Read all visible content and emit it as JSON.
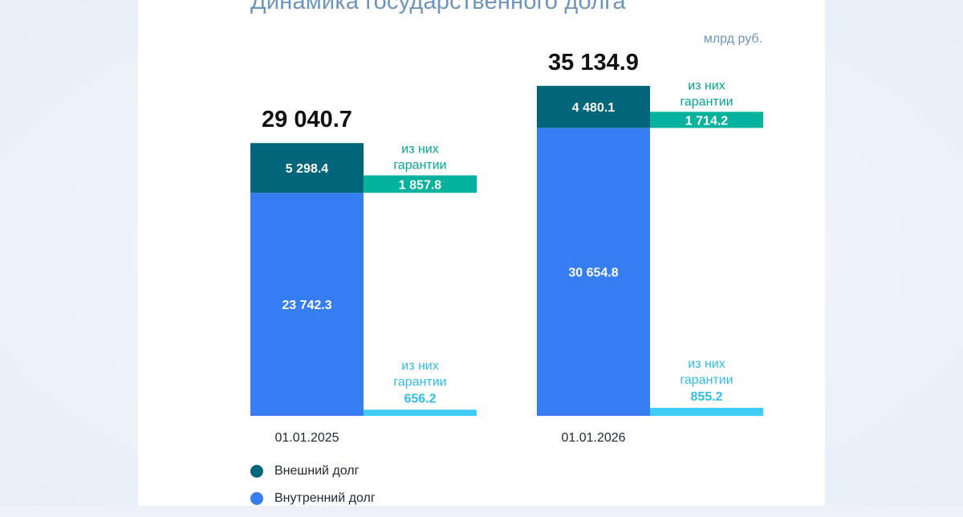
{
  "title": "Динамика государственного долга",
  "unit": "млрд руб.",
  "colors": {
    "external": "#02657a",
    "domestic": "#367df2",
    "external_guarantee": "#04b29d",
    "domestic_guarantee": "#3fccf8",
    "total_text": "#111111",
    "date_text": "#1f2933",
    "guarantee_label_ext": "#04a592",
    "guarantee_label_dom": "#30bde8"
  },
  "guarantee_label": [
    "из них",
    "гарантии"
  ],
  "legend": [
    {
      "label": "Внешний долг",
      "color": "#02657a"
    },
    {
      "label": "Внутренний долг",
      "color": "#367df2"
    }
  ],
  "chart_data": {
    "type": "bar",
    "stacked": true,
    "categories": [
      "01.01.2025",
      "01.01.2026"
    ],
    "totals": [
      "29 040.7",
      "35 134.9"
    ],
    "series": [
      {
        "name": "Внутренний долг",
        "values": [
          23742.3,
          30654.8
        ],
        "labels": [
          "23 742.3",
          "30 654.8"
        ],
        "guarantees": [
          656.2,
          855.2
        ],
        "guarantee_labels": [
          "656.2",
          "855.2"
        ]
      },
      {
        "name": "Внешний долг",
        "values": [
          5298.4,
          4480.1
        ],
        "labels": [
          "5 298.4",
          "4 480.1"
        ],
        "guarantees": [
          1857.8,
          1714.2
        ],
        "guarantee_labels": [
          "1 857.8",
          "1 714.2"
        ]
      }
    ]
  }
}
